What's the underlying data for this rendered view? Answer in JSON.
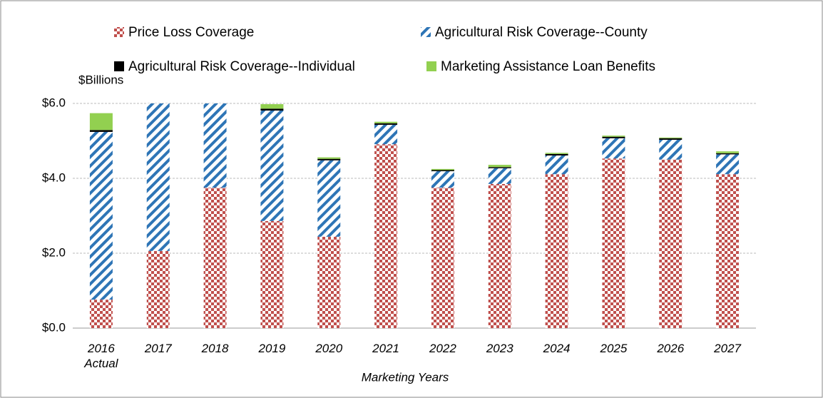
{
  "chart_data": {
    "type": "stacked_bar",
    "y_axis_label": "$Billions",
    "x_axis_label": "Marketing Years",
    "categories": [
      "2016 Actual",
      "2017",
      "2018",
      "2019",
      "2020",
      "2021",
      "2022",
      "2023",
      "2024",
      "2025",
      "2026",
      "2027"
    ],
    "series": [
      {
        "name": "Price Loss Coverage",
        "color": "#c0504d",
        "pattern": "checker",
        "values": [
          0.76,
          2.06,
          3.75,
          2.86,
          2.44,
          4.91,
          3.75,
          3.85,
          4.11,
          4.53,
          4.5,
          4.11
        ]
      },
      {
        "name": "Agricultural Risk Coverage--County",
        "color": "#2e75b6",
        "pattern": "diagonal",
        "values": [
          4.48,
          3.94,
          2.25,
          2.95,
          2.04,
          0.52,
          0.44,
          0.42,
          0.5,
          0.54,
          0.53,
          0.53
        ]
      },
      {
        "name": "Agricultural Risk Coverage--Individual",
        "color": "#000000",
        "pattern": "solid",
        "values": [
          0.05,
          0,
          0,
          0.05,
          0.04,
          0.04,
          0.03,
          0.03,
          0.04,
          0.04,
          0.04,
          0.03
        ]
      },
      {
        "name": "Marketing Assistance Loan Benefits",
        "color": "#92d050",
        "pattern": "solid",
        "values": [
          0.45,
          0,
          0,
          0.12,
          0.04,
          0.04,
          0.03,
          0.06,
          0.03,
          0.03,
          0.02,
          0.05
        ]
      }
    ],
    "ylim": [
      0,
      6
    ],
    "yticks": [
      {
        "value": 0,
        "label": "$0.0"
      },
      {
        "value": 2,
        "label": "$2.0"
      },
      {
        "value": 4,
        "label": "$4.0"
      },
      {
        "value": 6,
        "label": "$6.0"
      }
    ],
    "grid": true,
    "legend": "top"
  }
}
